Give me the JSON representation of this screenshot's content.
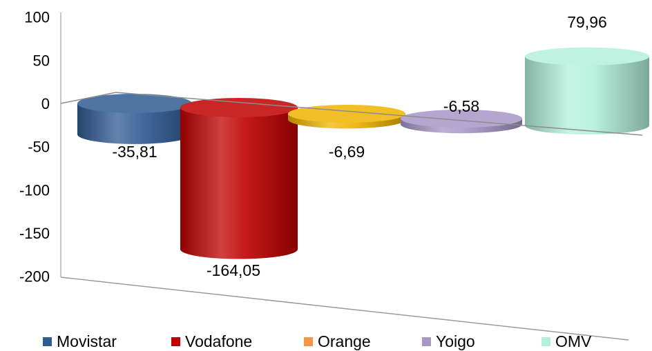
{
  "chart_data": {
    "type": "bar",
    "categories": [
      "Movistar",
      "Vodafone",
      "Orange",
      "Yoigo",
      "OMV"
    ],
    "values": [
      -35.81,
      -164.05,
      -6.69,
      -6.58,
      79.96
    ],
    "data_labels": [
      "-35,81",
      "-164,05",
      "-6,69",
      "-6,58",
      "79,96"
    ],
    "colors": [
      "#2f5b93",
      "#c00000",
      "#f0b400",
      "#a796c6",
      "#b2f0dc"
    ],
    "legend_colors": [
      "#2f5b93",
      "#c00000",
      "#f79646",
      "#a796c6",
      "#b2f0dc"
    ],
    "y_ticks": [
      "100",
      "50",
      "0",
      "-50",
      "-100",
      "-150",
      "-200"
    ],
    "ylim": [
      -200,
      100
    ],
    "legend_position": "bottom",
    "grid": false,
    "style": "3d-cylinder"
  }
}
